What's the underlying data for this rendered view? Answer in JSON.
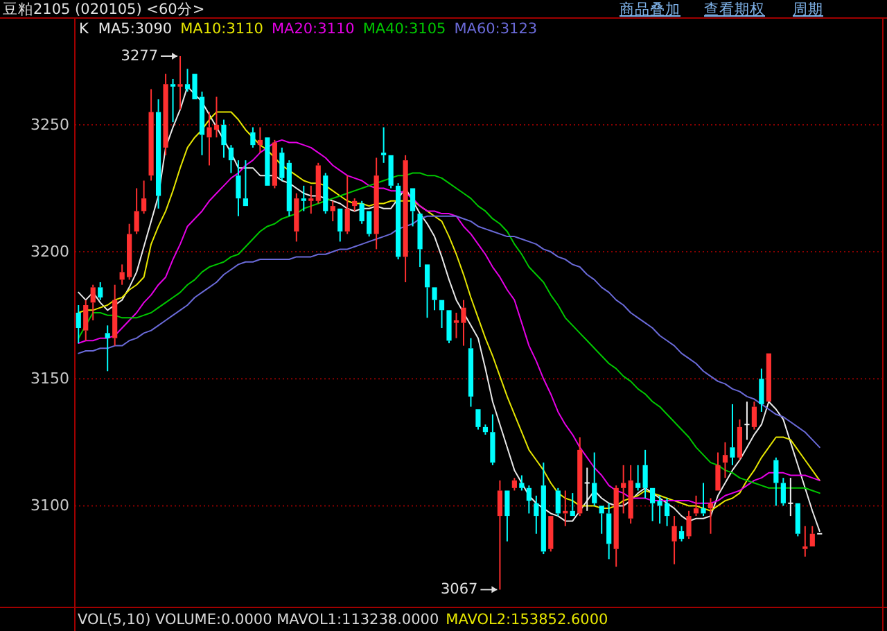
{
  "chart_data": {
    "type": "candlestick",
    "title": "豆粕2105 (020105) <60分>",
    "legend_title": "K",
    "grid": "y",
    "tick_labels": "y",
    "ylim": [
      3060,
      3292
    ],
    "yticks": [
      3100,
      3150,
      3200,
      3250
    ],
    "categories": [
      null,
      null,
      null,
      null,
      null,
      null,
      null,
      null,
      null,
      null,
      null,
      null,
      null,
      null,
      null,
      null,
      null,
      null,
      null,
      null,
      null,
      null,
      null,
      null,
      null,
      null,
      null,
      null,
      null,
      null,
      null,
      null,
      null,
      null,
      null,
      null,
      null,
      null,
      null,
      null,
      null,
      null,
      null,
      null,
      null,
      null,
      null,
      null,
      null,
      null,
      null,
      null,
      null,
      null,
      null,
      null,
      null,
      null,
      null,
      null,
      null,
      null,
      null,
      null,
      null,
      null,
      null,
      null,
      null,
      null,
      null,
      null,
      null,
      null,
      null,
      null,
      null,
      null,
      null,
      null,
      null,
      null,
      null,
      null,
      null,
      null,
      null,
      null,
      null,
      null,
      null,
      null,
      null,
      null,
      null,
      null,
      null,
      null,
      null,
      null,
      null,
      null,
      null
    ],
    "ohlc": [
      [
        3176,
        3179,
        3164,
        3170
      ],
      [
        3169,
        3181,
        3165,
        3179
      ],
      [
        3180,
        3187,
        3173,
        3186
      ],
      [
        3186,
        3188,
        3181,
        3182
      ],
      [
        3168,
        3171,
        3153,
        3166
      ],
      [
        3166,
        3187,
        3163,
        3181
      ],
      [
        3189,
        3195,
        3187,
        3192
      ],
      [
        3190,
        3211,
        3189,
        3207
      ],
      [
        3208,
        3225,
        3207,
        3216
      ],
      [
        3216,
        3228,
        3215,
        3221
      ],
      [
        3230,
        3264,
        3228,
        3255
      ],
      [
        3255,
        3260,
        3217,
        3222
      ],
      [
        3241,
        3270,
        3238,
        3266
      ],
      [
        3266,
        3268,
        3251,
        3265
      ],
      [
        3265,
        3277,
        3256,
        3266
      ],
      [
        3266,
        3272,
        3263,
        3264
      ],
      [
        3270,
        3270,
        3260,
        3260
      ],
      [
        3261,
        3263,
        3238,
        3246
      ],
      [
        3245,
        3255,
        3234,
        3249
      ],
      [
        3248,
        3261,
        3245,
        3250
      ],
      [
        3250,
        3252,
        3237,
        3242
      ],
      [
        3241,
        3242,
        3231,
        3236
      ],
      [
        3230,
        3236,
        3214,
        3221
      ],
      [
        3221,
        3236,
        3218,
        3218
      ],
      [
        3247,
        3249,
        3241,
        3242
      ],
      [
        3242,
        3249,
        3239,
        3244
      ],
      [
        3245,
        3245,
        3226,
        3226
      ],
      [
        3226,
        3244,
        3225,
        3243
      ],
      [
        3239,
        3241,
        3228,
        3229
      ],
      [
        3235,
        3236,
        3214,
        3216
      ],
      [
        3208,
        3223,
        3204,
        3221
      ],
      [
        3221,
        3226,
        3216,
        3220
      ],
      [
        3220,
        3226,
        3215,
        3221
      ],
      [
        3220,
        3235,
        3219,
        3234
      ],
      [
        3230,
        3231,
        3215,
        3216
      ],
      [
        3216,
        3220,
        3212,
        3218
      ],
      [
        3217,
        3217,
        3204,
        3208
      ],
      [
        3208,
        3230,
        3207,
        3217
      ],
      [
        3218,
        3221,
        3216,
        3220
      ],
      [
        3219,
        3220,
        3211,
        3212
      ],
      [
        3216,
        3216,
        3206,
        3207
      ],
      [
        3207,
        3237,
        3201,
        3230
      ],
      [
        3239,
        3249,
        3235,
        3238
      ],
      [
        3238,
        3238,
        3225,
        3226
      ],
      [
        3226,
        3227,
        3197,
        3198
      ],
      [
        3198,
        3238,
        3188,
        3236
      ],
      [
        3225,
        3225,
        3210,
        3216
      ],
      [
        3215,
        3215,
        3194,
        3201
      ],
      [
        3195,
        3195,
        3174,
        3186
      ],
      [
        3186,
        3186,
        3177,
        3181
      ],
      [
        3181,
        3181,
        3170,
        3177
      ],
      [
        3177,
        3177,
        3164,
        3165
      ],
      [
        3172,
        3176,
        3166,
        3173
      ],
      [
        3172,
        3181,
        3163,
        3178
      ],
      [
        3162,
        3166,
        3139,
        3143
      ],
      [
        3138,
        3138,
        3130,
        3131
      ],
      [
        3131,
        3132,
        3128,
        3129
      ],
      [
        3129,
        3136,
        3116,
        3117
      ],
      [
        3096,
        3110,
        3067,
        3106
      ],
      [
        3106,
        3106,
        3086,
        3096
      ],
      [
        3107,
        3111,
        3106,
        3110
      ],
      [
        3109,
        3112,
        3106,
        3107
      ],
      [
        3107,
        3108,
        3097,
        3102
      ],
      [
        3101,
        3104,
        3089,
        3096
      ],
      [
        3108,
        3117,
        3081,
        3082
      ],
      [
        3083,
        3096,
        3082,
        3096
      ],
      [
        3106,
        3107,
        3096,
        3097
      ],
      [
        3097,
        3106,
        3092,
        3098
      ],
      [
        3098,
        3105,
        3096,
        3096
      ],
      [
        3097,
        3127,
        3096,
        3122
      ],
      [
        3109,
        3115,
        3098,
        3109
      ],
      [
        3109,
        3121,
        3100,
        3101
      ],
      [
        3100,
        3100,
        3089,
        3097
      ],
      [
        3097,
        3101,
        3079,
        3085
      ],
      [
        3083,
        3108,
        3076,
        3107
      ],
      [
        3107,
        3116,
        3097,
        3109
      ],
      [
        3095,
        3116,
        3093,
        3110
      ],
      [
        3109,
        3116,
        3106,
        3107
      ],
      [
        3116,
        3122,
        3103,
        3107
      ],
      [
        3107,
        3107,
        3094,
        3101
      ],
      [
        3102,
        3104,
        3093,
        3100
      ],
      [
        3101,
        3103,
        3092,
        3096
      ],
      [
        3086,
        3096,
        3077,
        3092
      ],
      [
        3090,
        3092,
        3086,
        3087
      ],
      [
        3088,
        3098,
        3087,
        3096
      ],
      [
        3097,
        3104,
        3096,
        3099
      ],
      [
        3099,
        3109,
        3096,
        3097
      ],
      [
        3099,
        3103,
        3089,
        3101
      ],
      [
        3106,
        3121,
        3106,
        3116
      ],
      [
        3117,
        3125,
        3111,
        3120
      ],
      [
        3123,
        3140,
        3116,
        3119
      ],
      [
        3119,
        3134,
        3118,
        3131
      ],
      [
        3132,
        3141,
        3126,
        3132
      ],
      [
        3131,
        3141,
        3130,
        3139
      ],
      [
        3150,
        3154,
        3137,
        3140
      ],
      [
        3141,
        3160,
        3141,
        3160
      ],
      [
        3118,
        3119,
        3100,
        3109
      ],
      [
        3109,
        3111,
        3100,
        3101
      ],
      [
        3101,
        3111,
        3096,
        3101
      ],
      [
        3101,
        3101,
        3088,
        3089
      ],
      [
        3083,
        3092,
        3080,
        3084
      ],
      [
        3084,
        3092,
        3084,
        3089
      ],
      [
        3089,
        3089,
        3089,
        3089
      ]
    ],
    "series": [
      {
        "type": "line",
        "name": "MA5:3090",
        "color": "#e8e8e8",
        "values": [
          3184,
          3181,
          3184,
          3180,
          3177,
          3179,
          3181,
          3186,
          3192,
          3202,
          3212,
          3222,
          3241,
          3249,
          3256,
          3265,
          3262,
          3259,
          3254,
          3249,
          3244,
          3239,
          3233,
          3233,
          3233,
          3230,
          3230,
          3230,
          3228,
          3227,
          3225,
          3223,
          3222,
          3222,
          3221,
          3220,
          3219,
          3217,
          3216,
          3217,
          3217,
          3218,
          3217,
          3217,
          3221,
          3225,
          3220,
          3215,
          3211,
          3206,
          3198,
          3189,
          3181,
          3176,
          3171,
          3166,
          3154,
          3141,
          3132,
          3123,
          3114,
          3109,
          3104,
          3101,
          3099,
          3097,
          3096,
          3094,
          3094,
          3098,
          3102,
          3106,
          3103,
          3101,
          3100,
          3100,
          3102,
          3105,
          3107,
          3105,
          3103,
          3101,
          3099,
          3096,
          3094,
          3095,
          3095,
          3096,
          3104,
          3109,
          3114,
          3118,
          3123,
          3128,
          3132,
          3141,
          3138,
          3134,
          3125,
          3116,
          3107,
          3098,
          3090
        ]
      },
      {
        "type": "line",
        "name": "MA10:3110",
        "color": "#e6e600",
        "values": [
          3176,
          3177,
          3177,
          3178,
          3179,
          3181,
          3182,
          3185,
          3187,
          3190,
          3203,
          3210,
          3216,
          3224,
          3233,
          3241,
          3245,
          3248,
          3252,
          3255,
          3255,
          3255,
          3252,
          3248,
          3245,
          3242,
          3240,
          3237,
          3234,
          3232,
          3230,
          3228,
          3227,
          3227,
          3226,
          3224,
          3222,
          3220,
          3219,
          3219,
          3218,
          3219,
          3219,
          3220,
          3220,
          3220,
          3220,
          3218,
          3216,
          3214,
          3212,
          3206,
          3199,
          3191,
          3182,
          3174,
          3166,
          3159,
          3151,
          3143,
          3136,
          3129,
          3122,
          3118,
          3114,
          3109,
          3105,
          3103,
          3102,
          3100,
          3100,
          3100,
          3099,
          3099,
          3100,
          3102,
          3103,
          3104,
          3106,
          3105,
          3104,
          3103,
          3102,
          3101,
          3100,
          3100,
          3099,
          3098,
          3100,
          3102,
          3103,
          3105,
          3110,
          3114,
          3119,
          3123,
          3127,
          3127,
          3126,
          3122,
          3118,
          3114,
          3110
        ]
      },
      {
        "type": "line",
        "name": "MA20:3110",
        "color": "#e600e6",
        "values": [
          3164,
          3165,
          3165,
          3166,
          3166,
          3167,
          3170,
          3173,
          3176,
          3180,
          3183,
          3187,
          3190,
          3197,
          3203,
          3210,
          3213,
          3216,
          3220,
          3223,
          3226,
          3229,
          3231,
          3234,
          3236,
          3239,
          3241,
          3243,
          3244,
          3243,
          3243,
          3242,
          3241,
          3239,
          3237,
          3234,
          3232,
          3230,
          3229,
          3228,
          3226,
          3225,
          3225,
          3224,
          3224,
          3223,
          3221,
          3218,
          3216,
          3216,
          3215,
          3215,
          3214,
          3210,
          3207,
          3203,
          3199,
          3194,
          3190,
          3185,
          3181,
          3172,
          3163,
          3157,
          3150,
          3144,
          3137,
          3132,
          3128,
          3123,
          3119,
          3115,
          3112,
          3108,
          3106,
          3105,
          3103,
          3103,
          3103,
          3102,
          3102,
          3102,
          3102,
          3102,
          3102,
          3101,
          3101,
          3101,
          3102,
          3104,
          3105,
          3106,
          3108,
          3110,
          3111,
          3113,
          3113,
          3113,
          3112,
          3112,
          3112,
          3111,
          3110
        ]
      },
      {
        "type": "line",
        "name": "MA40:3105",
        "color": "#00c800",
        "values": [
          3166,
          3171,
          3176,
          3176,
          3175,
          3175,
          3174,
          3174,
          3174,
          3175,
          3176,
          3178,
          3180,
          3182,
          3184,
          3187,
          3189,
          3192,
          3194,
          3195,
          3196,
          3198,
          3199,
          3202,
          3205,
          3208,
          3210,
          3211,
          3213,
          3214,
          3215,
          3217,
          3218,
          3219,
          3220,
          3221,
          3222,
          3223,
          3224,
          3225,
          3226,
          3227,
          3228,
          3229,
          3230,
          3230,
          3231,
          3231,
          3230,
          3230,
          3229,
          3227,
          3225,
          3223,
          3221,
          3218,
          3216,
          3213,
          3211,
          3208,
          3203,
          3199,
          3194,
          3191,
          3188,
          3183,
          3179,
          3174,
          3171,
          3168,
          3165,
          3162,
          3159,
          3156,
          3154,
          3151,
          3149,
          3146,
          3144,
          3141,
          3139,
          3136,
          3133,
          3130,
          3127,
          3123,
          3120,
          3117,
          3116,
          3114,
          3113,
          3111,
          3110,
          3109,
          3108,
          3107,
          3107,
          3107,
          3107,
          3107,
          3107,
          3106,
          3105
        ]
      },
      {
        "type": "line",
        "name": "MA60:3123",
        "color": "#6a6ad8",
        "values": [
          3160,
          3161,
          3161,
          3162,
          3162,
          3163,
          3163,
          3165,
          3166,
          3168,
          3169,
          3171,
          3173,
          3175,
          3177,
          3179,
          3182,
          3184,
          3186,
          3188,
          3191,
          3193,
          3195,
          3196,
          3196,
          3197,
          3197,
          3197,
          3197,
          3197,
          3198,
          3198,
          3198,
          3199,
          3199,
          3200,
          3201,
          3201,
          3202,
          3203,
          3204,
          3205,
          3206,
          3207,
          3209,
          3210,
          3211,
          3213,
          3214,
          3214,
          3214,
          3214,
          3214,
          3213,
          3212,
          3210,
          3209,
          3208,
          3207,
          3206,
          3206,
          3205,
          3204,
          3203,
          3201,
          3200,
          3198,
          3197,
          3195,
          3194,
          3191,
          3189,
          3186,
          3184,
          3181,
          3179,
          3176,
          3174,
          3172,
          3170,
          3167,
          3165,
          3163,
          3160,
          3158,
          3156,
          3153,
          3151,
          3149,
          3148,
          3146,
          3145,
          3143,
          3142,
          3140,
          3138,
          3136,
          3135,
          3133,
          3131,
          3129,
          3126,
          3123
        ]
      }
    ],
    "annotations": [
      "3277",
      "3067",
      "商品叠加",
      "查看期权",
      "周期",
      "VOL(5,10) VOLUME:0.0000 MAVOL1:113238.0000",
      "MAVOL2:153852.6000"
    ]
  }
}
